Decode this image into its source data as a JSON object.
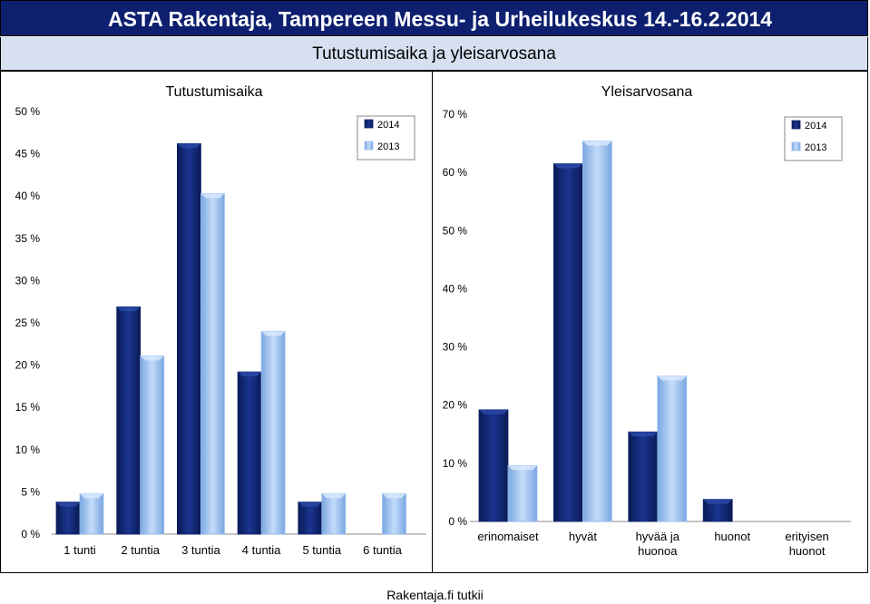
{
  "header": {
    "title": "ASTA Rakentaja, Tampereen Messu- ja Urheilukeskus 14.-16.2.2014"
  },
  "subheader": {
    "title": "Tutustumisaika ja yleisarvosana"
  },
  "footer": {
    "source": "Rakentaja.fi tutkii"
  },
  "colors": {
    "series_2014": "#0f2369",
    "series_2013": "#96bef0",
    "header_bg": "#0d1f6e",
    "subheader_bg": "#d6e0f0"
  },
  "chart_data": [
    {
      "type": "bar",
      "title": "Tutustumisaika",
      "categories": [
        "1 tunti",
        "2 tuntia",
        "3 tuntia",
        "4 tuntia",
        "5 tuntia",
        "6 tuntia"
      ],
      "series": [
        {
          "name": "2014",
          "values": [
            3.8,
            26.9,
            46.2,
            19.2,
            3.8,
            0
          ]
        },
        {
          "name": "2013",
          "values": [
            4.8,
            21.1,
            40.3,
            24.0,
            4.8,
            4.8
          ]
        }
      ],
      "yticks": [
        "0 %",
        "5 %",
        "10 %",
        "15 %",
        "20 %",
        "25 %",
        "30 %",
        "35 %",
        "40 %",
        "45 %",
        "50 %"
      ],
      "ylim": [
        0,
        50
      ],
      "legend_position": "top-right",
      "grid": false
    },
    {
      "type": "bar",
      "title": "Yleisarvosana",
      "categories": [
        [
          "erinomaiset"
        ],
        [
          "hyvät"
        ],
        [
          "hyvää ja",
          "huonoa"
        ],
        [
          "huonot"
        ],
        [
          "erityisen",
          "huonot"
        ]
      ],
      "series": [
        {
          "name": "2014",
          "values": [
            19.2,
            61.5,
            15.4,
            3.8,
            0
          ]
        },
        {
          "name": "2013",
          "values": [
            9.6,
            65.4,
            25.0,
            0,
            0
          ]
        }
      ],
      "yticks": [
        "0 %",
        "10 %",
        "20 %",
        "30 %",
        "40 %",
        "50 %",
        "60 %",
        "70 %"
      ],
      "ylim": [
        0,
        70
      ],
      "legend_position": "top-right",
      "grid": false
    }
  ]
}
